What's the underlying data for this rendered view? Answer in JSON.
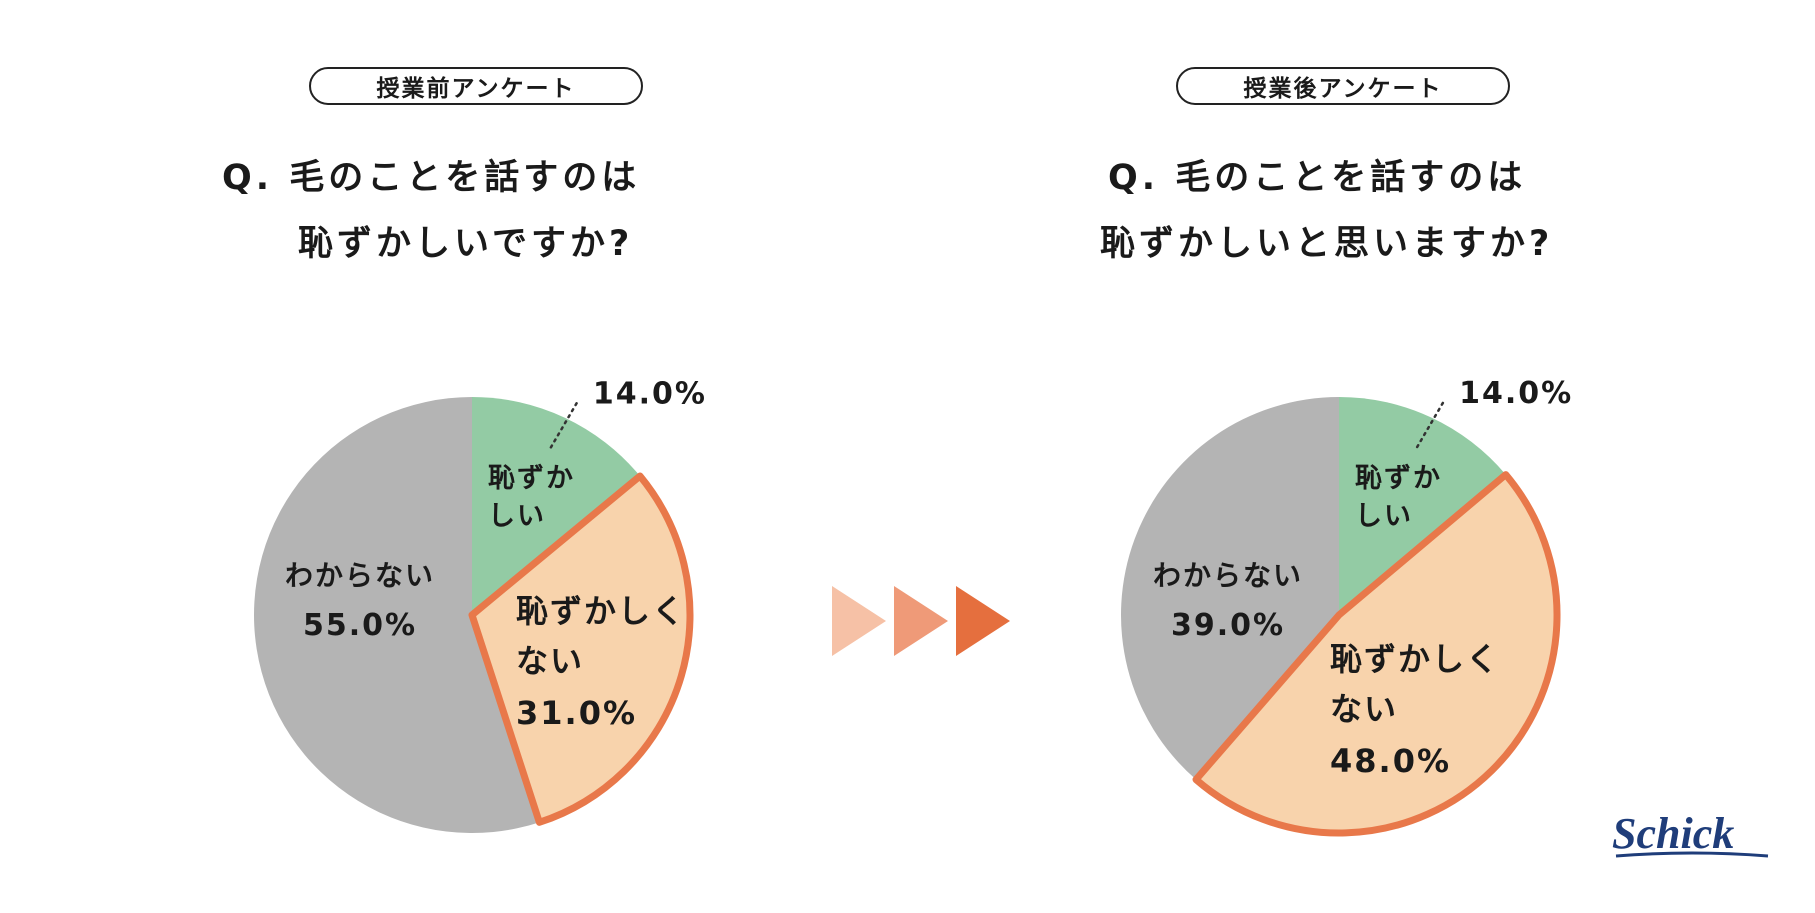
{
  "left": {
    "badge": "授業前アンケート",
    "question_line1": "Q. 毛のことを話すのは",
    "question_line2": "恥ずかしいですか?"
  },
  "right": {
    "badge": "授業後アンケート",
    "question_line1": "Q. 毛のことを話すのは",
    "question_line2": "恥ずかしいと思いますか?"
  },
  "logo": "Schick",
  "colors": {
    "hazukashii": "#93cba4",
    "hazukashikunai": "#f8d3ac",
    "highlight_border": "#e8784a",
    "wakaranai": "#b4b4b4",
    "arrow1": "#f6c1a6",
    "arrow2": "#ef9a78",
    "arrow3": "#e56f3e"
  },
  "chart_data": [
    {
      "type": "pie",
      "title": "授業前アンケート",
      "slices": [
        {
          "label": "恥ずかしい",
          "value": 14.0,
          "display": "14.0%"
        },
        {
          "label": "恥ずかしくない",
          "value": 31.0,
          "display": "31.0%"
        },
        {
          "label": "わからない",
          "value": 55.0,
          "display": "55.0%"
        }
      ]
    },
    {
      "type": "pie",
      "title": "授業後アンケート",
      "slices": [
        {
          "label": "恥ずかしい",
          "value": 14.0,
          "display": "14.0%"
        },
        {
          "label": "恥ずかしくない",
          "value": 48.0,
          "display": "48.0%"
        },
        {
          "label": "わからない",
          "value": 39.0,
          "display": "39.0%"
        }
      ]
    }
  ],
  "labels": {
    "hazukashii_l1": "恥ずか",
    "hazukashii_l2": "しい",
    "hazukashikunai_l1": "恥ずかしく",
    "hazukashikunai_l2": "ない",
    "wakaranai": "わからない"
  }
}
